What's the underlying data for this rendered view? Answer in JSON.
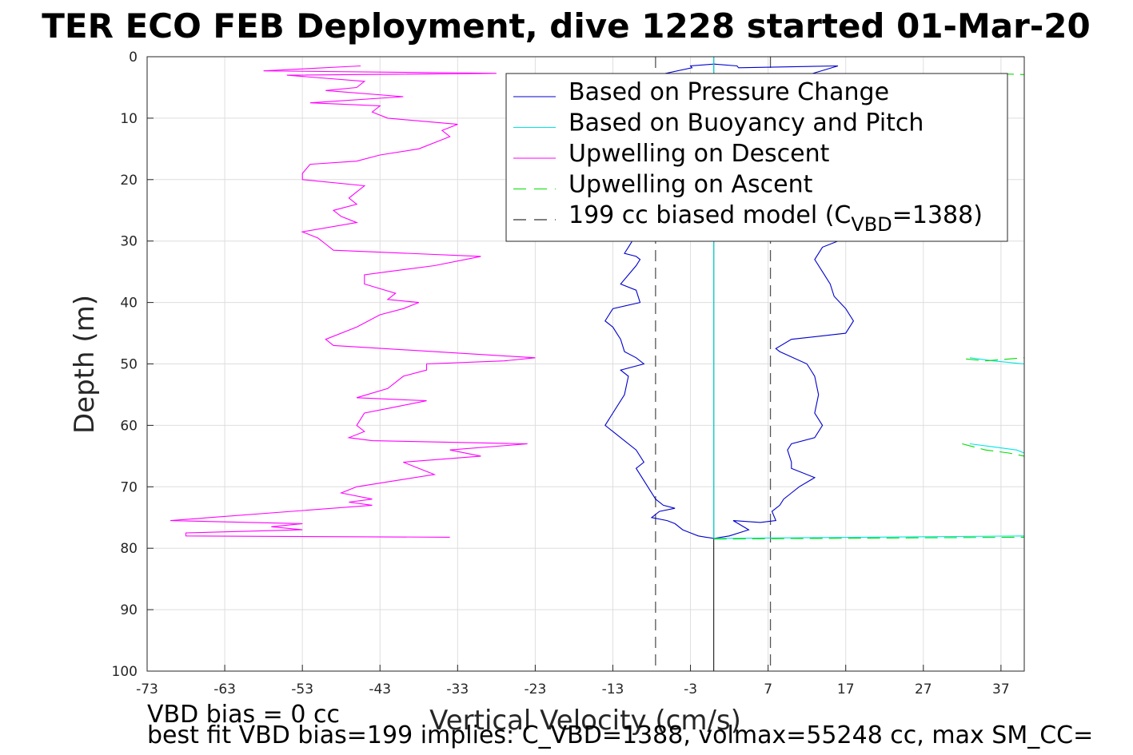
{
  "chart_data": {
    "type": "line",
    "title": "TER ECO FEB Deployment, dive 1228 started 01-Mar-20",
    "xlabel": "Vertical Velocity (cm/s)",
    "ylabel": "Depth (m)",
    "xlim": [
      -73,
      40
    ],
    "ylim": [
      100,
      0
    ],
    "y_reversed": true,
    "grid": true,
    "x_ticks": [
      -73,
      -63,
      -53,
      -43,
      -33,
      -23,
      -13,
      -3,
      7,
      17,
      27,
      37
    ],
    "y_ticks": [
      0,
      10,
      20,
      30,
      40,
      50,
      60,
      70,
      80,
      90,
      100
    ],
    "legend_position": "top-right",
    "legend": [
      {
        "label": "Based on Pressure Change",
        "color": "#0000cc",
        "dash": "solid"
      },
      {
        "label": "Based on Buoyancy and Pitch",
        "color": "#00e5e5",
        "dash": "solid"
      },
      {
        "label": "Upwelling on Descent",
        "color": "#ff00ff",
        "dash": "solid"
      },
      {
        "label": "Upwelling on Ascent",
        "color": "#00dd00",
        "dash": "dashed"
      },
      {
        "label": "199 cc biased model (C",
        "sub": "VBD",
        "suffix": "=1388)",
        "color": "#000000",
        "dash": "dashed"
      }
    ],
    "model_lines": {
      "center": 0,
      "bias_left": -7.5,
      "bias_right": 7.3
    },
    "series": [
      {
        "name": "Based on Pressure Change",
        "color": "#0000cc",
        "branches": [
          {
            "points": [
              [
                0,
                1.2
              ],
              [
                -3,
                1.5
              ],
              [
                -2.8,
                1.8
              ],
              [
                -24,
                7.5
              ],
              [
                -26,
                7
              ],
              [
                -25,
                6.5
              ],
              [
                -22,
                5.5
              ],
              [
                -18,
                4.5
              ],
              [
                -12,
                4
              ],
              [
                -8,
                3.5
              ],
              [
                -4,
                3
              ],
              [
                -10,
                10
              ],
              [
                -12,
                15
              ],
              [
                -12.5,
                20
              ],
              [
                -12,
                25
              ],
              [
                -10.5,
                30
              ],
              [
                -11,
                31
              ],
              [
                -11.5,
                32
              ],
              [
                -10,
                32.5
              ],
              [
                -9.5,
                33
              ],
              [
                -10,
                34
              ],
              [
                -12,
                37
              ],
              [
                -10,
                38
              ],
              [
                -9.5,
                40
              ],
              [
                -13,
                41
              ],
              [
                -14,
                43
              ],
              [
                -13,
                44
              ],
              [
                -12.5,
                45
              ],
              [
                -12,
                46
              ],
              [
                -11.5,
                48
              ],
              [
                -10,
                49
              ],
              [
                -9,
                50
              ],
              [
                -12,
                51
              ],
              [
                -11,
                52
              ],
              [
                -11.5,
                55
              ],
              [
                -13,
                58
              ],
              [
                -14,
                60
              ],
              [
                -13,
                61
              ],
              [
                -12,
                62
              ],
              [
                -10,
                64
              ],
              [
                -9,
                66
              ],
              [
                -10,
                67
              ],
              [
                -9.5,
                68
              ],
              [
                -8.5,
                70
              ],
              [
                -7.5,
                72
              ],
              [
                -6.5,
                73
              ],
              [
                -5,
                73.5
              ],
              [
                -7,
                74
              ],
              [
                -8,
                75
              ],
              [
                -6,
                75.5
              ],
              [
                -5,
                76
              ],
              [
                -4,
                77
              ],
              [
                -3,
                77.5
              ],
              [
                -2,
                78
              ],
              [
                -1,
                78.2
              ],
              [
                0,
                78.4
              ]
            ]
          },
          {
            "points": [
              [
                0,
                1.2
              ],
              [
                3,
                1.5
              ],
              [
                3.2,
                1.8
              ],
              [
                16,
                1.5
              ],
              [
                12,
                3
              ],
              [
                10,
                6
              ],
              [
                11,
                10
              ],
              [
                10.5,
                15
              ],
              [
                11,
                20
              ],
              [
                12,
                25
              ],
              [
                13,
                28
              ],
              [
                13,
                29
              ],
              [
                16,
                30
              ],
              [
                14,
                31
              ],
              [
                13,
                33
              ],
              [
                14,
                35
              ],
              [
                15,
                37
              ],
              [
                15.5,
                39
              ],
              [
                17,
                41
              ],
              [
                18,
                43
              ],
              [
                17,
                45
              ],
              [
                10,
                46
              ],
              [
                8,
                47.5
              ],
              [
                8.5,
                48
              ],
              [
                12,
                50
              ],
              [
                13,
                52
              ],
              [
                13.5,
                55
              ],
              [
                13,
                58
              ],
              [
                14,
                60
              ],
              [
                13,
                62
              ],
              [
                10,
                63
              ],
              [
                9.5,
                64
              ],
              [
                10,
                66
              ],
              [
                10,
                67
              ],
              [
                13,
                68.5
              ],
              [
                11,
                70
              ],
              [
                10,
                71
              ],
              [
                9,
                72
              ],
              [
                8.5,
                73
              ],
              [
                7.5,
                74
              ],
              [
                8,
                75.5
              ],
              [
                6,
                75.8
              ],
              [
                2.5,
                75.5
              ],
              [
                4.5,
                77
              ],
              [
                2,
                78
              ],
              [
                0,
                78.4
              ]
            ]
          }
        ]
      },
      {
        "name": "Based on Buoyancy and Pitch",
        "color": "#00e5e5",
        "branches": [
          {
            "points": [
              [
                0,
                0
              ],
              [
                0,
                78.4
              ]
            ]
          },
          {
            "points": [
              [
                0,
                78.4
              ],
              [
                40,
                78
              ]
            ]
          },
          {
            "points": [
              [
                33,
                63
              ],
              [
                36,
                63.5
              ],
              [
                39,
                64
              ],
              [
                40,
                64.5
              ]
            ]
          },
          {
            "points": [
              [
                33,
                49
              ],
              [
                36,
                49.5
              ],
              [
                40,
                50
              ]
            ]
          }
        ]
      },
      {
        "name": "Upwelling on Descent",
        "color": "#ff00ff",
        "branches": [
          {
            "points": [
              [
                -45.5,
                1.5
              ],
              [
                -58,
                2.3
              ],
              [
                -28,
                2.7
              ],
              [
                -55,
                3
              ],
              [
                -45,
                4
              ],
              [
                -46,
                5
              ],
              [
                -50,
                5.5
              ],
              [
                -40,
                6.5
              ],
              [
                -52,
                7.5
              ],
              [
                -43,
                8
              ],
              [
                -44,
                9
              ],
              [
                -42,
                10
              ],
              [
                -33,
                11
              ],
              [
                -35,
                12
              ],
              [
                -34,
                13
              ],
              [
                -38,
                15
              ],
              [
                -43,
                16
              ],
              [
                -46,
                17
              ],
              [
                -52,
                17.5
              ],
              [
                -53,
                19
              ],
              [
                -53,
                20
              ],
              [
                -45,
                21
              ],
              [
                -46,
                22
              ],
              [
                -47,
                23
              ],
              [
                -46,
                24
              ],
              [
                -49,
                25
              ],
              [
                -48,
                26
              ],
              [
                -46,
                27
              ],
              [
                -53,
                28.5
              ],
              [
                -51,
                29.5
              ],
              [
                -50,
                30.5
              ],
              [
                -49,
                31.5
              ],
              [
                -30,
                32.5
              ],
              [
                -36,
                34
              ],
              [
                -42,
                35
              ],
              [
                -45,
                35.5
              ],
              [
                -45,
                37
              ],
              [
                -41,
                38.5
              ],
              [
                -42,
                39.5
              ],
              [
                -38,
                40
              ],
              [
                -40,
                41
              ],
              [
                -43,
                42
              ],
              [
                -46,
                44
              ],
              [
                -50,
                46
              ],
              [
                -49,
                47
              ],
              [
                -23,
                49
              ],
              [
                -27,
                49.5
              ],
              [
                -37,
                50
              ],
              [
                -37,
                51
              ],
              [
                -40,
                52
              ],
              [
                -42,
                54
              ],
              [
                -46,
                55.5
              ],
              [
                -37,
                56
              ],
              [
                -41,
                57
              ],
              [
                -45,
                58
              ],
              [
                -46,
                60
              ],
              [
                -45,
                61
              ],
              [
                -47,
                62
              ],
              [
                -44,
                62.5
              ],
              [
                -24,
                63
              ],
              [
                -34,
                64
              ],
              [
                -30,
                65
              ],
              [
                -40,
                66
              ],
              [
                -38,
                67
              ],
              [
                -36,
                68
              ],
              [
                -41,
                69
              ],
              [
                -46,
                70
              ],
              [
                -48,
                71
              ],
              [
                -44,
                72
              ],
              [
                -47,
                72.5
              ],
              [
                -44,
                73
              ],
              [
                -70,
                75.5
              ],
              [
                -53,
                76
              ],
              [
                -57,
                76.5
              ],
              [
                -53,
                77
              ],
              [
                -68,
                77.5
              ],
              [
                -68,
                78
              ],
              [
                -34,
                78.2
              ]
            ]
          }
        ]
      },
      {
        "name": "Upwelling on Ascent",
        "color": "#00dd00",
        "branches": [
          {
            "points": [
              [
                0,
                78.5
              ],
              [
                40,
                78.2
              ]
            ]
          },
          {
            "points": [
              [
                32,
                63
              ],
              [
                35,
                64
              ],
              [
                38,
                64.5
              ],
              [
                40,
                65
              ]
            ]
          },
          {
            "points": [
              [
                32.5,
                49.2
              ],
              [
                35,
                49.5
              ],
              [
                40,
                49
              ]
            ]
          },
          {
            "points": [
              [
                37,
                2.8
              ],
              [
                40,
                2.9
              ]
            ]
          }
        ]
      }
    ]
  },
  "footer": {
    "line1": "VBD bias = 0 cc",
    "line2": "best fit VBD bias=199 implies: C_VBD=1388, volmax=55248 cc, max SM_CC="
  }
}
